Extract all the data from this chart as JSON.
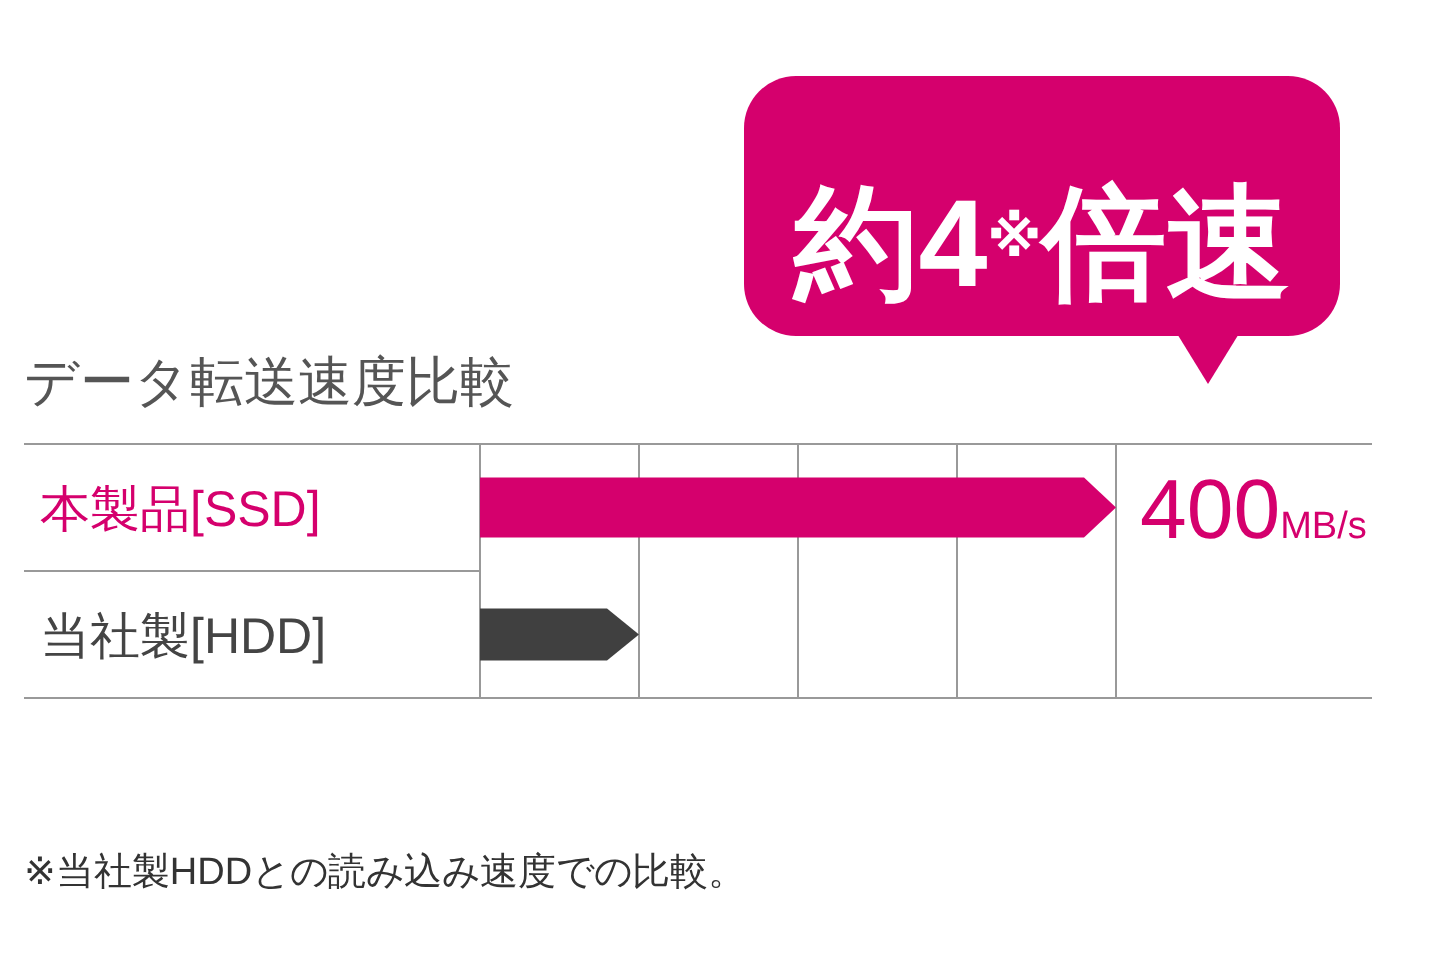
{
  "chart_data": {
    "type": "bar",
    "orientation": "horizontal",
    "title": "データ転送速度比較",
    "categories": [
      "本製品[SSD]",
      "当社製[HDD]"
    ],
    "values": [
      400,
      100
    ],
    "colors": [
      "#d5006d",
      "#404040"
    ],
    "value_labels": [
      "400MB/s",
      null
    ],
    "xlim": [
      0,
      400
    ],
    "xticks": [
      {
        "value": 0,
        "label": null
      },
      {
        "value": 100,
        "label": null
      },
      {
        "value": 200,
        "label": null
      },
      {
        "value": 300,
        "label": null
      },
      {
        "value": 400,
        "label": null
      }
    ],
    "grid": "x",
    "tick_labels": "y",
    "annotations": [
      "約4$^{※}$倍速",
      "※当社製HDDとの読み込み速度での比較。"
    ]
  }
}
